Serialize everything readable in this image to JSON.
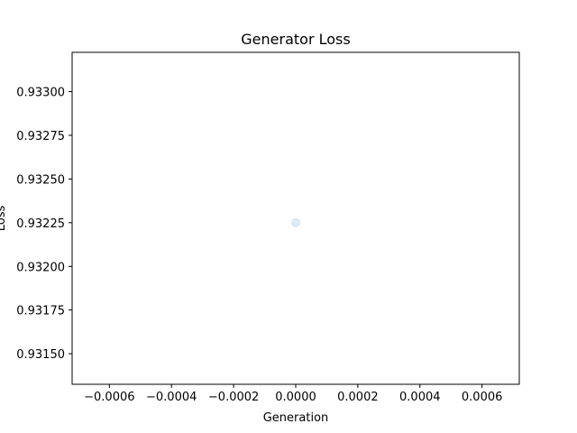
{
  "chart_data": {
    "type": "scatter",
    "title": "Generator Loss",
    "xlabel": "Generation",
    "ylabel": "Loss",
    "xlim": [
      -0.00072,
      0.00072
    ],
    "ylim": [
      0.931325,
      0.933225
    ],
    "x_ticks": [
      -0.0006,
      -0.0004,
      -0.0002,
      0.0,
      0.0002,
      0.0004,
      0.0006
    ],
    "x_tick_labels": [
      "−0.0006",
      "−0.0004",
      "−0.0002",
      "0.0000",
      "0.0002",
      "0.0004",
      "0.0006"
    ],
    "y_ticks": [
      0.9315,
      0.93175,
      0.932,
      0.93225,
      0.9325,
      0.93275,
      0.933
    ],
    "y_tick_labels": [
      "0.93150",
      "0.93175",
      "0.93200",
      "0.93225",
      "0.93250",
      "0.93275",
      "0.93300"
    ],
    "grid": false,
    "series": [
      {
        "color": "#1f77b4",
        "alpha": 0.15,
        "points": [
          {
            "x": 0,
            "y": 0.93225
          }
        ]
      }
    ]
  }
}
